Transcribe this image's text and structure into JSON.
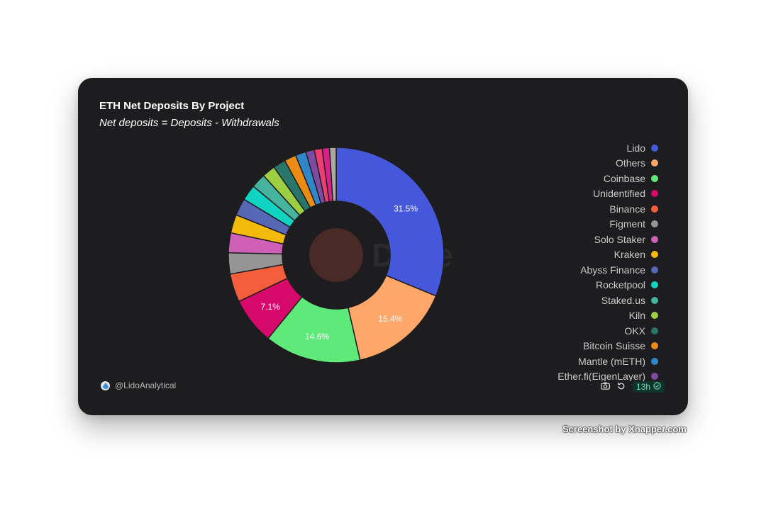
{
  "card": {
    "title": "ETH Net Deposits By Project",
    "subtitle": "Net deposits = Deposits - Withdrawals",
    "author": "@LidoAnalytical",
    "freshness": "13h"
  },
  "icons": {
    "author": "droplet-icon",
    "camera": "camera-icon",
    "refresh": "refresh-icon",
    "check": "check-circle-icon"
  },
  "watermark": {
    "credit": "Screenshot by Xnapper.com",
    "logo_text": "Dune"
  },
  "chart_data": {
    "type": "pie",
    "donut": true,
    "title": "ETH Net Deposits By Project",
    "subtitle": "Net deposits = Deposits - Withdrawals",
    "legend_position": "right",
    "slices": [
      {
        "name": "Lido",
        "value": 31.5,
        "label": "31.5%",
        "color": "#4558db"
      },
      {
        "name": "Others",
        "value": 15.4,
        "label": "15.4%",
        "color": "#fea768"
      },
      {
        "name": "Coinbase",
        "value": 14.6,
        "label": "14.6%",
        "color": "#5fe979"
      },
      {
        "name": "Unidentified",
        "value": 7.1,
        "label": "7.1%",
        "color": "#d6096b"
      },
      {
        "name": "Binance",
        "value": 4.3,
        "label": "",
        "color": "#f55e3b"
      },
      {
        "name": "Figment",
        "value": 3.2,
        "label": "",
        "color": "#959595"
      },
      {
        "name": "Solo Staker",
        "value": 3.0,
        "label": "",
        "color": "#cf60b8"
      },
      {
        "name": "Kraken",
        "value": 2.8,
        "label": "",
        "color": "#f3b90b"
      },
      {
        "name": "Abyss Finance",
        "value": 2.6,
        "label": "",
        "color": "#5667b5"
      },
      {
        "name": "Rocketpool",
        "value": 2.4,
        "label": "",
        "color": "#11d3c2"
      },
      {
        "name": "Staked.us",
        "value": 2.2,
        "label": "",
        "color": "#45b39d"
      },
      {
        "name": "Kiln",
        "value": 2.0,
        "label": "",
        "color": "#9ccf42"
      },
      {
        "name": "OKX",
        "value": 1.9,
        "label": "",
        "color": "#277669"
      },
      {
        "name": "Bitcoin Suisse",
        "value": 1.8,
        "label": "",
        "color": "#ec8a16"
      },
      {
        "name": "Mantle (mETH)",
        "value": 1.6,
        "label": "",
        "color": "#2f86c9"
      },
      {
        "name": "Ether.fi(EigenLayer)",
        "value": 1.3,
        "label": "",
        "color": "#7d4ba1"
      },
      {
        "name": "",
        "value": 1.2,
        "label": "",
        "color": "#ec3e73"
      },
      {
        "name": "",
        "value": 1.1,
        "label": "",
        "color": "#d81f8a"
      },
      {
        "name": "",
        "value": 1.0,
        "label": "",
        "color": "#aaa9a3"
      }
    ]
  }
}
